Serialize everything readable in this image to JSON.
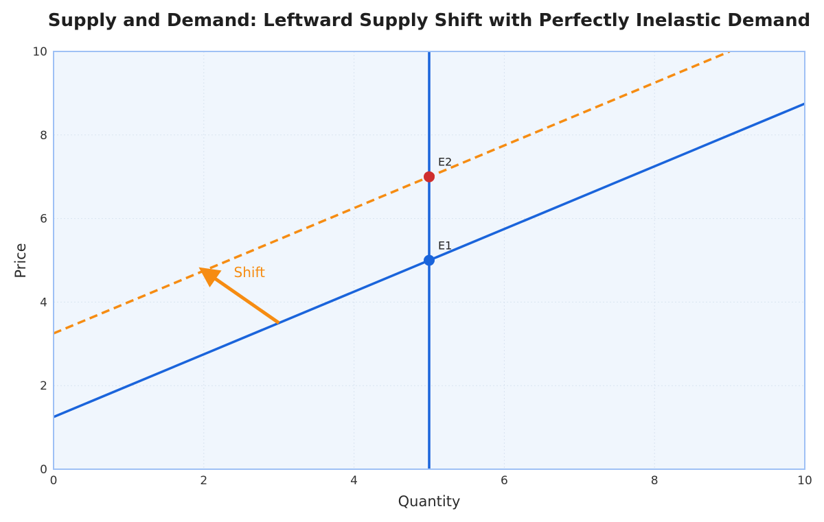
{
  "chart_data": {
    "type": "line",
    "title": "Supply and Demand: Leftward Supply Shift with Perfectly Inelastic Demand",
    "xlabel": "Quantity",
    "ylabel": "Price",
    "xlim": [
      0,
      10
    ],
    "ylim": [
      0,
      10
    ],
    "x_ticks": [
      "0",
      "2",
      "4",
      "6",
      "8",
      "10"
    ],
    "y_ticks": [
      "0",
      "2",
      "4",
      "6",
      "8",
      "10"
    ],
    "grid": true,
    "series": [
      {
        "id": "supply-original",
        "style": "solid",
        "color": "#1a64db",
        "points": [
          [
            0,
            1.25
          ],
          [
            10,
            8.75
          ]
        ]
      },
      {
        "id": "supply-shifted",
        "style": "dashed",
        "color": "#f68c12",
        "points": [
          [
            0,
            3.25
          ],
          [
            9.0,
            10
          ]
        ]
      },
      {
        "id": "demand",
        "style": "solid",
        "color": "#1a64db",
        "points": [
          [
            5,
            0
          ],
          [
            5,
            10
          ]
        ]
      }
    ],
    "equilibria": [
      {
        "label": "E1",
        "x": 5,
        "y": 5,
        "color": "#1a64db"
      },
      {
        "label": "E2",
        "x": 5,
        "y": 7,
        "color": "#cf2e2e"
      }
    ],
    "annotations": [
      {
        "text": "Shift",
        "color": "#f68c12",
        "arrow_from": [
          3,
          3.5
        ],
        "arrow_to": [
          2,
          4.75
        ],
        "text_at": [
          2.4,
          4.6
        ]
      }
    ],
    "colors": {
      "plot_background": "#f0f6fd",
      "plot_border": "#9ec0f5",
      "grid": "#d8e3f0"
    }
  }
}
